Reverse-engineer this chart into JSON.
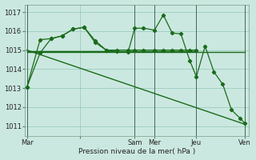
{
  "bg_color": "#cbe8e0",
  "grid_color": "#99ccbb",
  "line_color": "#1a6b1a",
  "xlabel": "Pression niveau de la mer( hPa )",
  "ylim": [
    1010.5,
    1017.4
  ],
  "xlim": [
    0,
    10.2
  ],
  "yticks": [
    1011,
    1012,
    1013,
    1014,
    1015,
    1016,
    1017
  ],
  "xtick_positions": [
    0.1,
    2.5,
    5.0,
    5.9,
    7.8,
    10.0
  ],
  "xtick_labels": [
    "Mar",
    "",
    "Sam",
    "Mer",
    "Jeu",
    "Ven"
  ],
  "vline_positions": [
    0.1,
    5.0,
    5.9,
    7.8,
    10.0
  ],
  "jagged1_x": [
    0.1,
    0.7,
    1.2,
    1.7,
    2.2,
    2.7,
    3.2,
    3.7,
    4.2,
    4.7,
    5.0,
    5.4,
    5.9,
    6.3,
    6.7,
    7.1,
    7.5,
    7.8,
    8.2,
    8.6,
    9.0,
    9.4,
    9.8,
    10.0
  ],
  "jagged1_y": [
    1013.05,
    1014.85,
    1015.6,
    1015.75,
    1016.1,
    1016.2,
    1015.4,
    1015.0,
    1014.92,
    1014.9,
    1016.15,
    1016.15,
    1016.05,
    1016.85,
    1015.9,
    1015.85,
    1014.45,
    1013.6,
    1015.2,
    1013.85,
    1013.2,
    1011.85,
    1011.4,
    1011.15
  ],
  "jagged2_x": [
    0.1,
    0.7,
    1.2,
    1.7,
    2.2,
    2.7,
    3.2,
    3.7,
    4.2,
    4.7,
    5.0,
    5.4,
    5.9,
    6.3,
    6.7,
    7.1,
    7.5,
    7.8
  ],
  "jagged2_y": [
    1013.05,
    1015.55,
    1015.6,
    1015.75,
    1016.1,
    1016.2,
    1015.5,
    1015.0,
    1015.0,
    1015.0,
    1015.0,
    1015.0,
    1015.0,
    1015.0,
    1015.0,
    1015.0,
    1015.0,
    1015.0
  ],
  "flat_line_x": [
    0.1,
    10.0
  ],
  "flat_line_y": [
    1014.88,
    1014.88
  ],
  "decline_line_x": [
    0.1,
    10.0
  ],
  "decline_line_y": [
    1015.0,
    1011.1
  ],
  "flat2_line_x": [
    0.1,
    7.8
  ],
  "flat2_line_y": [
    1014.95,
    1014.95
  ]
}
